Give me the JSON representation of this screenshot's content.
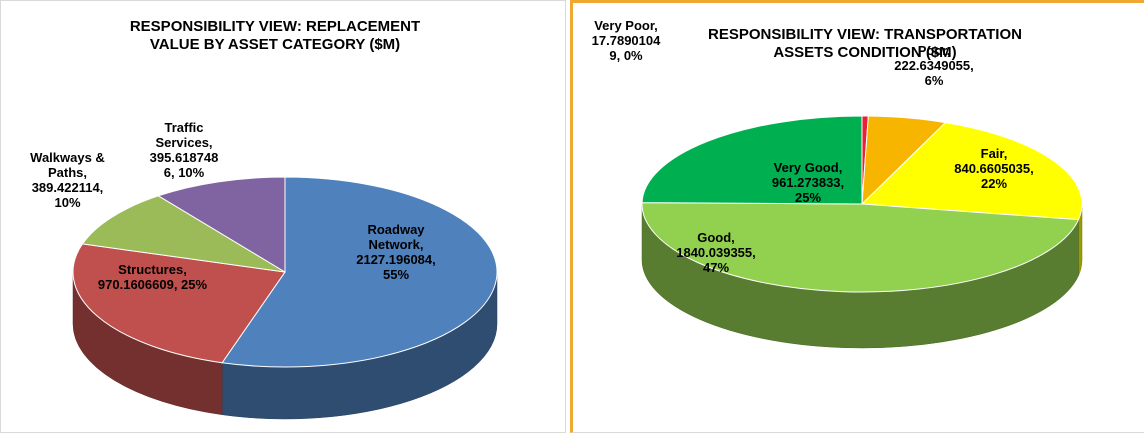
{
  "chart_data": [
    {
      "type": "pie3d",
      "title": "RESPONSIBILITY VIEW: REPLACEMENT VALUE BY ASSET CATEGORY ($M)",
      "categories": [
        "Roadway Network",
        "Structures",
        "Walkways & Paths",
        "Traffic Services"
      ],
      "values": [
        2127.196084,
        970.1606609,
        389.422114,
        395.6187486
      ],
      "value_labels": [
        "Roadway Network, 2127.196084, 55%",
        "Structures, 970.1606609, 25%",
        "Walkways & Paths, 389.422114, 10%",
        "Traffic Services, 395.6187486, 10%"
      ],
      "colors": [
        "#4f81bd",
        "#c0504d",
        "#9bbb59",
        "#8064a2"
      ]
    },
    {
      "type": "pie3d",
      "title": "RESPONSIBILITY VIEW: TRANSPORTATION ASSETS CONDITION ($M)",
      "categories": [
        "Very Poor",
        "Poor",
        "Fair",
        "Good",
        "Very Good"
      ],
      "values": [
        17.78901049,
        222.6349055,
        840.6605035,
        1840.039355,
        961.273833
      ],
      "value_labels": [
        "Very Poor, 17.78901049, 0%",
        "Poor, 222.6349055, 6%",
        "Fair, 840.6605035, 22%",
        "Good, 1840.039355, 47%",
        "Very Good, 961.273833, 25%"
      ],
      "colors": [
        "#e8203a",
        "#f7b500",
        "#ffff00",
        "#92d050",
        "#00b050"
      ]
    }
  ]
}
